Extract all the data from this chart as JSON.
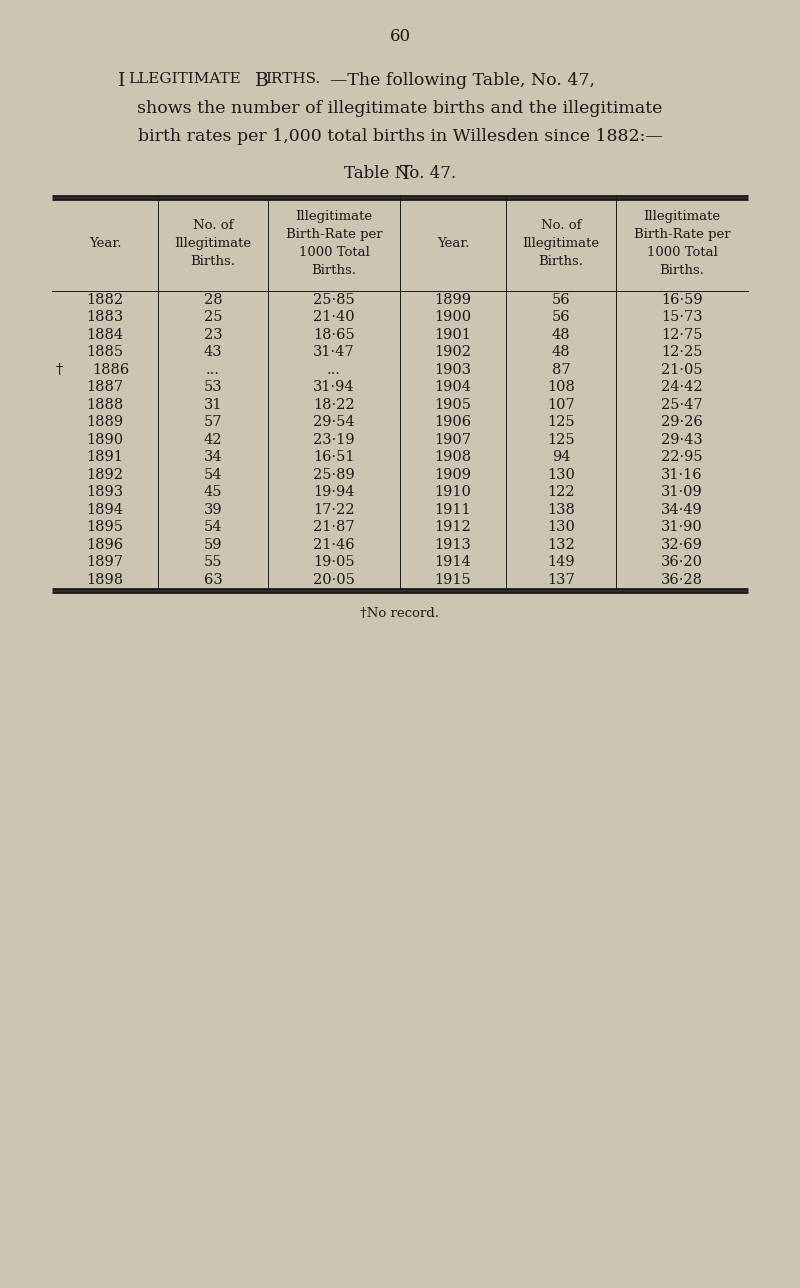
{
  "page_number": "60",
  "intro_line1_sc": "Illegitimate  Births.",
  "intro_line1_rest": "—The following Table, No. 47,",
  "intro_line2": "shows the number of illegitimate births and the illegitimate",
  "intro_line3": "birth rates per 1,000 total births in Willesden since 1882:—",
  "table_title_sc": "Table No. 47.",
  "col_headers": [
    "Year.",
    "No. of\nIllegitimate\nBirths.",
    "Illegitimate\nBirth-Rate per\n1000 Total\nBirths."
  ],
  "left_data": [
    [
      "1882",
      "28",
      "25·85"
    ],
    [
      "1883",
      "25",
      "21·40"
    ],
    [
      "1884",
      "23",
      "18·65"
    ],
    [
      "1885",
      "43",
      "31·47"
    ],
    [
      "…1886",
      "...",
      "..."
    ],
    [
      "1887",
      "53",
      "31·94"
    ],
    [
      "1888",
      "31",
      "18·22"
    ],
    [
      "1889",
      "57",
      "29·54"
    ],
    [
      "1890",
      "42",
      "23·19"
    ],
    [
      "1891",
      "34",
      "16·51"
    ],
    [
      "1892",
      "54",
      "25·89"
    ],
    [
      "1893",
      "45",
      "19·94"
    ],
    [
      "1894",
      "39",
      "17·22"
    ],
    [
      "1895",
      "54",
      "21·87"
    ],
    [
      "1896",
      "59",
      "21·46"
    ],
    [
      "1897",
      "55",
      "19·05"
    ],
    [
      "1898",
      "63",
      "20·05"
    ]
  ],
  "right_data": [
    [
      "1899",
      "56",
      "16·59"
    ],
    [
      "1900",
      "56",
      "15·73"
    ],
    [
      "1901",
      "48",
      "12·75"
    ],
    [
      "1902",
      "48",
      "12·25"
    ],
    [
      "1903",
      "87",
      "21·05"
    ],
    [
      "1904",
      "108",
      "24·42"
    ],
    [
      "1905",
      "107",
      "25·47"
    ],
    [
      "1906",
      "125",
      "29·26"
    ],
    [
      "1907",
      "125",
      "29·43"
    ],
    [
      "1908",
      "94",
      "22·95"
    ],
    [
      "1909",
      "130",
      "31·16"
    ],
    [
      "1910",
      "122",
      "31·09"
    ],
    [
      "1911",
      "138",
      "34·49"
    ],
    [
      "1912",
      "130",
      "31·90"
    ],
    [
      "1913",
      "132",
      "32·69"
    ],
    [
      "1914",
      "149",
      "36·20"
    ],
    [
      "1915",
      "137",
      "36·28"
    ]
  ],
  "footnote": "†No record.",
  "bg_color": "#ccc5b2",
  "text_color": "#1a1a1a",
  "font_size_body": 10.5,
  "font_size_header": 9.5,
  "font_size_title": 12,
  "font_size_intro": 12.5,
  "font_size_page": 12
}
